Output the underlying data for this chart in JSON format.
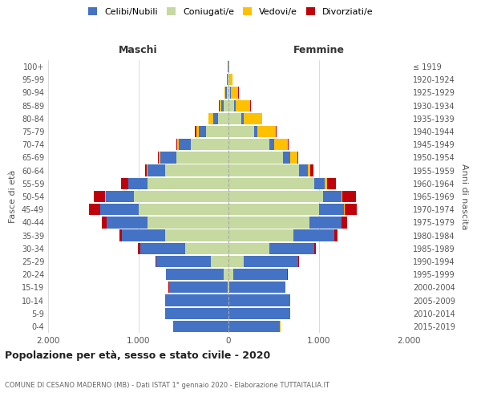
{
  "age_groups": [
    "0-4",
    "5-9",
    "10-14",
    "15-19",
    "20-24",
    "25-29",
    "30-34",
    "35-39",
    "40-44",
    "45-49",
    "50-54",
    "55-59",
    "60-64",
    "65-69",
    "70-74",
    "75-79",
    "80-84",
    "85-89",
    "90-94",
    "95-99",
    "100+"
  ],
  "birth_years": [
    "2015-2019",
    "2010-2014",
    "2005-2009",
    "2000-2004",
    "1995-1999",
    "1990-1994",
    "1985-1989",
    "1980-1984",
    "1975-1979",
    "1970-1974",
    "1965-1969",
    "1960-1964",
    "1955-1959",
    "1950-1954",
    "1945-1949",
    "1940-1944",
    "1935-1939",
    "1930-1934",
    "1925-1929",
    "1920-1924",
    "≤ 1919"
  ],
  "male_celibi": [
    610,
    700,
    700,
    650,
    640,
    600,
    500,
    480,
    450,
    420,
    310,
    210,
    200,
    180,
    130,
    80,
    50,
    30,
    20,
    10,
    5
  ],
  "male_coniugati": [
    2,
    2,
    2,
    10,
    50,
    200,
    480,
    700,
    900,
    1000,
    1050,
    900,
    700,
    580,
    420,
    250,
    120,
    50,
    20,
    5,
    2
  ],
  "male_vedovi": [
    2,
    2,
    2,
    2,
    2,
    2,
    2,
    2,
    5,
    5,
    5,
    5,
    5,
    10,
    15,
    30,
    50,
    20,
    5,
    2,
    1
  ],
  "male_divorziati": [
    0,
    0,
    0,
    2,
    5,
    10,
    20,
    30,
    50,
    120,
    130,
    80,
    20,
    10,
    10,
    10,
    5,
    5,
    2,
    0,
    0
  ],
  "female_celibi": [
    570,
    680,
    680,
    620,
    600,
    600,
    500,
    450,
    350,
    280,
    200,
    120,
    100,
    80,
    60,
    40,
    30,
    20,
    10,
    5,
    2
  ],
  "female_coniugati": [
    2,
    2,
    2,
    10,
    50,
    170,
    450,
    720,
    900,
    1000,
    1050,
    950,
    780,
    600,
    450,
    280,
    140,
    60,
    20,
    5,
    1
  ],
  "female_vedovi": [
    2,
    2,
    2,
    2,
    2,
    2,
    2,
    5,
    5,
    10,
    15,
    20,
    30,
    80,
    150,
    200,
    200,
    160,
    80,
    30,
    5
  ],
  "female_divorziati": [
    0,
    0,
    0,
    2,
    5,
    10,
    20,
    30,
    60,
    130,
    150,
    100,
    30,
    15,
    10,
    10,
    5,
    5,
    2,
    0,
    0
  ],
  "colors": {
    "celibi": "#4472c4",
    "coniugati": "#c5d9a0",
    "vedovi": "#ffc000",
    "divorziati": "#c0000b"
  },
  "title": "Popolazione per età, sesso e stato civile - 2020",
  "subtitle": "COMUNE DI CESANO MADERNO (MB) - Dati ISTAT 1° gennaio 2020 - Elaborazione TUTTAITALIA.IT",
  "xlabel_left": "Maschi",
  "xlabel_right": "Femmine",
  "ylabel_left": "Fasce di età",
  "ylabel_right": "Anni di nascita",
  "xlim": 2000,
  "bg_color": "#ffffff",
  "grid_color": "#cccccc"
}
